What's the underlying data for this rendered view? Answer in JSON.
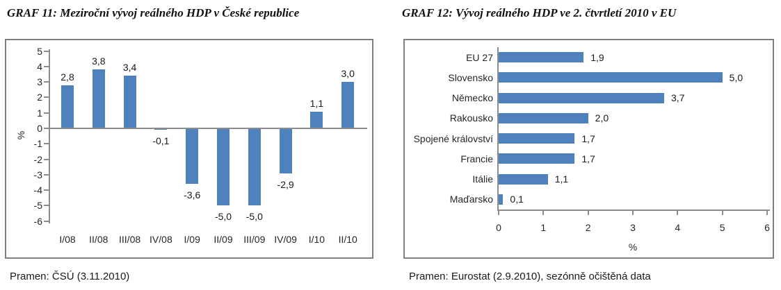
{
  "colors": {
    "bar": "#4F81BD",
    "axis": "#8C8C8C",
    "frame": "#808080",
    "text": "#262626"
  },
  "chart_data": [
    {
      "id": "graf11",
      "type": "bar",
      "title": "GRAF 11: Meziroční vývoj reálného HDP v České republice",
      "source": "Pramen: ČSÚ (3.11.2010)",
      "categories": [
        "I/08",
        "II/08",
        "III/08",
        "IV/08",
        "I/09",
        "II/09",
        "III/09",
        "IV/09",
        "I/10",
        "II/10"
      ],
      "values": [
        2.8,
        3.8,
        3.4,
        -0.1,
        -3.6,
        -5.0,
        -5.0,
        -2.9,
        1.1,
        3.0
      ],
      "data_labels": [
        "2,8",
        "3,8",
        "3,4",
        "-0,1",
        "-3,6",
        "-5,0",
        "-5,0",
        "-2,9",
        "1,1",
        "3,0"
      ],
      "ylabel": "%",
      "ylim": [
        -6,
        5
      ],
      "yticks": [
        "5",
        "4",
        "3",
        "2",
        "1",
        "0",
        "-1",
        "-2",
        "-3",
        "-4",
        "-5",
        "-6"
      ],
      "grid": false,
      "legend": "none",
      "bar_color": "#4F81BD"
    },
    {
      "id": "graf12",
      "type": "bar-horizontal",
      "title": "GRAF 12: Vývoj reálného HDP ve 2. čtvrtletí 2010 v EU",
      "source": "Pramen: Eurostat (2.9.2010), sezónně očištěná data",
      "categories": [
        "EU 27",
        "Slovensko",
        "Německo",
        "Rakousko",
        "Spojené království",
        "Francie",
        "Itálie",
        "Maďarsko"
      ],
      "values": [
        1.9,
        5.0,
        3.7,
        2.0,
        1.7,
        1.7,
        1.1,
        0.1
      ],
      "data_labels": [
        "1,9",
        "5,0",
        "3,7",
        "2,0",
        "1,7",
        "1,7",
        "1,1",
        "0,1"
      ],
      "xlabel": "%",
      "xlim": [
        0,
        6
      ],
      "xticks": [
        "0",
        "1",
        "2",
        "3",
        "4",
        "5",
        "6"
      ],
      "grid": false,
      "legend": "none",
      "bar_color": "#4F81BD"
    }
  ]
}
